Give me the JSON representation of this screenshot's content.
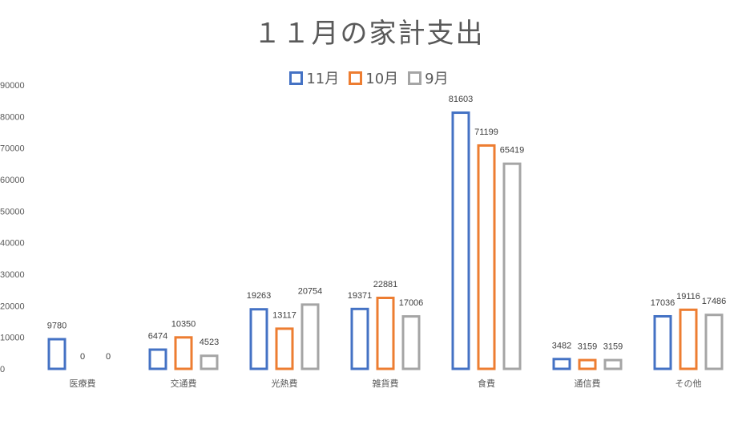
{
  "chart_data": {
    "type": "bar",
    "title": "１１月の家計支出",
    "categories": [
      "医療費",
      "交通費",
      "光熱費",
      "雑貨費",
      "食費",
      "通信費",
      "その他"
    ],
    "series": [
      {
        "name": "11月",
        "color": "#4472c4",
        "values": [
          9780,
          6474,
          19263,
          19371,
          81603,
          3482,
          17036
        ]
      },
      {
        "name": "10月",
        "color": "#ed7d31",
        "values": [
          0,
          10350,
          13117,
          22881,
          71199,
          3159,
          19116
        ]
      },
      {
        "name": "9月",
        "color": "#a5a5a5",
        "values": [
          0,
          4523,
          20754,
          17006,
          65419,
          3159,
          17486
        ]
      }
    ],
    "ylim": [
      0,
      90000
    ],
    "yticks": [
      0,
      10000,
      20000,
      30000,
      40000,
      50000,
      60000,
      70000,
      80000,
      90000
    ],
    "legend_position": "top",
    "grid": false,
    "bar_style": "outline"
  }
}
